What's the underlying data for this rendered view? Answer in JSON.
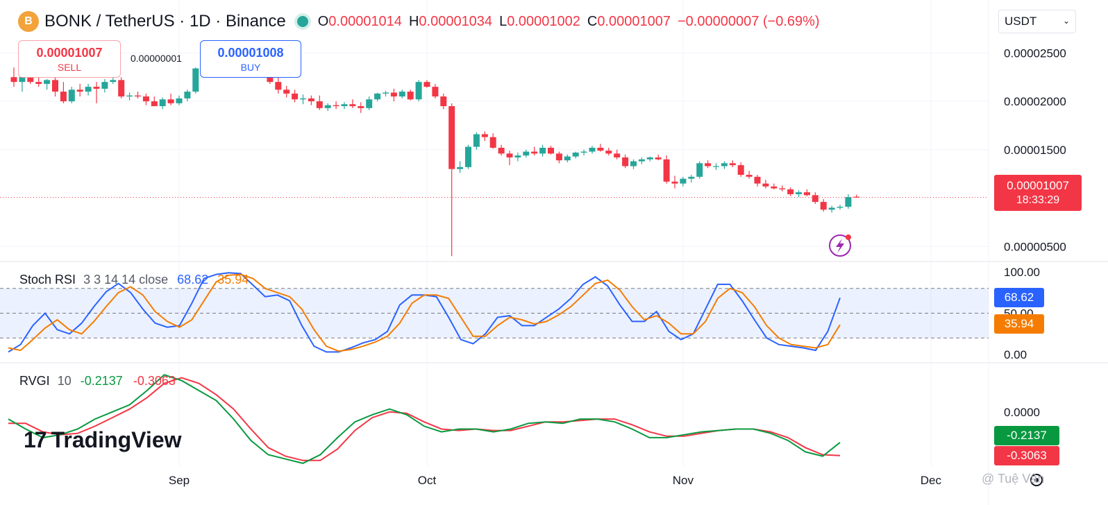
{
  "header": {
    "logo_icon": "bonk-coin-icon",
    "title": "BONK / TetherUS · 1D · Binance",
    "ohlc": {
      "o_label": "O",
      "o": "0.00001014",
      "h_label": "H",
      "h": "0.00001034",
      "l_label": "L",
      "l": "0.00001002",
      "c_label": "C",
      "c": "0.00001007"
    },
    "change": "−0.00000007 (−0.69%)"
  },
  "currency_select": "USDT",
  "trade": {
    "sell_price": "0.00001007",
    "sell_label": "SELL",
    "buy_price": "0.00001008",
    "buy_label": "BUY",
    "spread": "0.00000001"
  },
  "price_tag": {
    "price": "0.00001007",
    "countdown": "18:33:29"
  },
  "colors": {
    "up": "#26a69a",
    "down": "#f23645",
    "stoch_k": "#2962ff",
    "stoch_d": "#f57c00",
    "rvgi": "#089940",
    "rvgi_signal": "#f23645"
  },
  "stoch": {
    "name": "Stoch RSI",
    "params": "3 3 14 14 close",
    "k": "68.62",
    "d": "35.94"
  },
  "rvgi": {
    "name": "RVGI",
    "params": "10",
    "rvgi": "-0.2137",
    "signal": "-0.3063"
  },
  "watermark": "TradingView",
  "credit": "@ Tuệ Vân",
  "chart_data": [
    {
      "type": "candlestick",
      "title": "BONK / TetherUS · 1D · Binance",
      "y_ticks": [
        "0.00002500",
        "0.00002000",
        "0.00001500",
        "0.00000500"
      ],
      "ylim": [
        3.8e-06,
        2.66e-05
      ],
      "x_ticks": [
        {
          "label": "Sep",
          "i": 20
        },
        {
          "label": "Oct",
          "i": 50
        },
        {
          "label": "Nov",
          "i": 81
        },
        {
          "label": "Dec",
          "i": 111
        }
      ],
      "current_price": 1.007e-05,
      "candles": [
        [
          22.5,
          23.5,
          21.5,
          22.0
        ],
        [
          22.0,
          23.0,
          21.0,
          22.5
        ],
        [
          22.5,
          23.0,
          21.8,
          22.0
        ],
        [
          22.0,
          22.8,
          21.5,
          21.8
        ],
        [
          21.8,
          22.3,
          21.2,
          22.2
        ],
        [
          22.2,
          23.0,
          20.5,
          21.0
        ],
        [
          21.0,
          22.0,
          19.8,
          20.0
        ],
        [
          20.0,
          21.5,
          19.8,
          21.2
        ],
        [
          21.2,
          21.8,
          20.5,
          21.0
        ],
        [
          21.0,
          21.8,
          20.6,
          21.5
        ],
        [
          21.5,
          22.0,
          19.8,
          21.3
        ],
        [
          21.3,
          22.3,
          20.9,
          22.0
        ],
        [
          22.0,
          22.6,
          21.8,
          22.2
        ],
        [
          22.2,
          22.5,
          20.3,
          20.5
        ],
        [
          20.5,
          20.9,
          20.1,
          20.6
        ],
        [
          20.6,
          21.0,
          20.3,
          20.5
        ],
        [
          20.5,
          20.8,
          19.6,
          20.0
        ],
        [
          20.0,
          20.5,
          19.5,
          19.5
        ],
        [
          19.5,
          20.4,
          19.2,
          20.2
        ],
        [
          20.2,
          20.8,
          19.6,
          19.8
        ],
        [
          19.8,
          20.6,
          19.6,
          20.3
        ],
        [
          20.3,
          21.2,
          20.0,
          21.0
        ],
        [
          21.0,
          23.5,
          20.8,
          23.4
        ],
        [
          23.4,
          24.2,
          23.0,
          23.2
        ],
        [
          23.2,
          23.8,
          22.8,
          23.6
        ],
        [
          23.6,
          24.8,
          23.3,
          24.5
        ],
        [
          24.5,
          25.0,
          24.0,
          24.2
        ],
        [
          24.2,
          24.8,
          23.6,
          23.8
        ],
        [
          23.8,
          24.0,
          23.0,
          23.2
        ],
        [
          23.2,
          23.8,
          22.8,
          23.5
        ],
        [
          23.5,
          23.9,
          22.6,
          22.8
        ],
        [
          22.8,
          23.2,
          21.8,
          22.0
        ],
        [
          22.0,
          22.5,
          20.8,
          21.2
        ],
        [
          21.2,
          21.6,
          20.4,
          20.8
        ],
        [
          20.8,
          21.2,
          19.9,
          20.2
        ],
        [
          20.2,
          20.7,
          19.7,
          20.3
        ],
        [
          20.3,
          20.6,
          19.6,
          20.0
        ],
        [
          20.0,
          20.6,
          19.1,
          19.3
        ],
        [
          19.3,
          19.8,
          19.0,
          19.6
        ],
        [
          19.6,
          20.0,
          19.2,
          19.5
        ],
        [
          19.5,
          19.9,
          19.2,
          19.7
        ],
        [
          19.7,
          20.2,
          19.3,
          19.5
        ],
        [
          19.5,
          19.9,
          18.8,
          19.3
        ],
        [
          19.3,
          20.5,
          19.1,
          20.2
        ],
        [
          20.2,
          20.9,
          20.0,
          20.8
        ],
        [
          20.8,
          21.1,
          20.5,
          20.9
        ],
        [
          20.9,
          21.3,
          20.0,
          20.5
        ],
        [
          20.5,
          21.2,
          20.3,
          21.0
        ],
        [
          21.0,
          21.2,
          20.1,
          20.2
        ],
        [
          20.2,
          22.2,
          20.0,
          22.0
        ],
        [
          22.0,
          22.2,
          21.4,
          21.5
        ],
        [
          21.5,
          21.8,
          20.3,
          20.5
        ],
        [
          20.5,
          20.8,
          19.2,
          19.5
        ],
        [
          19.5,
          19.8,
          4.0,
          13.0
        ],
        [
          13.0,
          13.8,
          12.6,
          13.2
        ],
        [
          13.2,
          15.5,
          13.0,
          15.3
        ],
        [
          15.3,
          16.8,
          15.0,
          16.6
        ],
        [
          16.6,
          16.9,
          15.9,
          16.3
        ],
        [
          16.3,
          16.7,
          15.1,
          15.2
        ],
        [
          15.2,
          15.5,
          14.4,
          14.6
        ],
        [
          14.6,
          14.9,
          13.4,
          14.2
        ],
        [
          14.2,
          14.7,
          13.8,
          14.4
        ],
        [
          14.4,
          15.0,
          14.2,
          14.8
        ],
        [
          14.8,
          15.3,
          14.4,
          14.6
        ],
        [
          14.6,
          15.5,
          14.3,
          15.2
        ],
        [
          15.2,
          15.4,
          14.5,
          14.6
        ],
        [
          14.6,
          14.8,
          13.6,
          13.9
        ],
        [
          13.9,
          14.5,
          13.7,
          14.3
        ],
        [
          14.3,
          14.8,
          14.1,
          14.7
        ],
        [
          14.7,
          15.0,
          14.4,
          14.8
        ],
        [
          14.8,
          15.4,
          14.6,
          15.2
        ],
        [
          15.2,
          15.6,
          14.8,
          14.9
        ],
        [
          14.9,
          15.2,
          14.4,
          14.6
        ],
        [
          14.6,
          15.0,
          14.0,
          14.2
        ],
        [
          14.2,
          14.5,
          13.1,
          13.3
        ],
        [
          13.3,
          14.0,
          13.0,
          13.8
        ],
        [
          13.8,
          14.2,
          13.5,
          14.0
        ],
        [
          14.0,
          14.3,
          13.8,
          14.2
        ],
        [
          14.2,
          14.5,
          13.9,
          14.0
        ],
        [
          14.0,
          14.4,
          11.5,
          11.7
        ],
        [
          11.7,
          12.3,
          11.0,
          11.5
        ],
        [
          11.5,
          12.2,
          11.2,
          12.0
        ],
        [
          12.0,
          12.4,
          11.6,
          12.2
        ],
        [
          12.2,
          13.8,
          12.0,
          13.6
        ],
        [
          13.6,
          13.9,
          13.1,
          13.3
        ],
        [
          13.3,
          13.6,
          12.9,
          13.3
        ],
        [
          13.3,
          13.8,
          13.0,
          13.6
        ],
        [
          13.6,
          13.9,
          13.2,
          13.4
        ],
        [
          13.4,
          13.7,
          12.2,
          12.4
        ],
        [
          12.4,
          12.8,
          12.0,
          12.2
        ],
        [
          12.2,
          12.4,
          11.2,
          11.5
        ],
        [
          11.5,
          11.9,
          11.0,
          11.2
        ],
        [
          11.2,
          11.5,
          10.9,
          11.0
        ],
        [
          11.0,
          11.3,
          10.7,
          10.9
        ],
        [
          10.9,
          11.1,
          10.2,
          10.4
        ],
        [
          10.4,
          10.8,
          10.1,
          10.6
        ],
        [
          10.6,
          10.9,
          10.2,
          10.3
        ],
        [
          10.3,
          10.6,
          9.4,
          9.6
        ],
        [
          9.6,
          9.9,
          8.6,
          8.8
        ],
        [
          8.8,
          9.2,
          8.5,
          9.0
        ],
        [
          9.0,
          9.3,
          8.8,
          9.1
        ],
        [
          9.1,
          10.4,
          8.9,
          10.1
        ],
        [
          10.14,
          10.34,
          10.02,
          10.07
        ]
      ]
    },
    {
      "type": "line",
      "name": "Stoch RSI 3 3 14 14 close",
      "y_ticks": [
        100,
        50,
        0
      ],
      "ylim": [
        0,
        100
      ],
      "bands": [
        20,
        50,
        80
      ],
      "series": [
        {
          "name": "68.62",
          "color": "#2962ff",
          "values": [
            3,
            12,
            35,
            50,
            30,
            25,
            38,
            58,
            76,
            86,
            75,
            55,
            38,
            33,
            35,
            62,
            92,
            97,
            99,
            98,
            84,
            70,
            72,
            65,
            35,
            10,
            3,
            3,
            8,
            14,
            18,
            28,
            60,
            72,
            72,
            70,
            45,
            18,
            13,
            25,
            45,
            47,
            35,
            35,
            45,
            55,
            68,
            85,
            94,
            83,
            60,
            40,
            40,
            52,
            28,
            18,
            25,
            55,
            85,
            85,
            65,
            42,
            20,
            12,
            10,
            8,
            5,
            28,
            68.62
          ]
        },
        {
          "name": "35.94",
          "color": "#f57c00",
          "values": [
            8,
            5,
            18,
            32,
            42,
            30,
            25,
            40,
            58,
            75,
            82,
            72,
            52,
            40,
            33,
            42,
            65,
            88,
            96,
            97,
            92,
            80,
            75,
            70,
            55,
            30,
            10,
            4,
            6,
            10,
            15,
            22,
            38,
            62,
            72,
            72,
            68,
            45,
            22,
            22,
            35,
            45,
            42,
            37,
            40,
            48,
            58,
            72,
            86,
            90,
            78,
            58,
            42,
            47,
            38,
            25,
            25,
            40,
            68,
            80,
            75,
            58,
            35,
            20,
            12,
            10,
            8,
            12,
            35.94
          ]
        }
      ]
    },
    {
      "type": "line",
      "name": "RVGI 10",
      "y_ticks": [
        "0.0000"
      ],
      "ylim": [
        -0.38,
        0.32
      ],
      "series": [
        {
          "name": "-0.2137",
          "color": "#089940",
          "values": [
            -0.05,
            -0.12,
            -0.18,
            -0.16,
            -0.12,
            -0.05,
            0.0,
            0.05,
            0.15,
            0.26,
            0.22,
            0.15,
            0.08,
            -0.05,
            -0.2,
            -0.3,
            -0.33,
            -0.36,
            -0.3,
            -0.18,
            -0.07,
            -0.02,
            0.02,
            -0.02,
            -0.1,
            -0.14,
            -0.12,
            -0.12,
            -0.14,
            -0.12,
            -0.08,
            -0.07,
            -0.08,
            -0.05,
            -0.05,
            -0.07,
            -0.12,
            -0.18,
            -0.18,
            -0.16,
            -0.14,
            -0.13,
            -0.12,
            -0.12,
            -0.15,
            -0.2,
            -0.28,
            -0.31,
            -0.2137
          ]
        },
        {
          "name": "-0.3063",
          "color": "#f23645",
          "values": [
            -0.08,
            -0.08,
            -0.14,
            -0.16,
            -0.15,
            -0.1,
            -0.04,
            0.02,
            0.1,
            0.2,
            0.24,
            0.2,
            0.12,
            0.02,
            -0.12,
            -0.25,
            -0.31,
            -0.34,
            -0.34,
            -0.26,
            -0.13,
            -0.04,
            0.0,
            -0.01,
            -0.07,
            -0.12,
            -0.13,
            -0.12,
            -0.13,
            -0.13,
            -0.1,
            -0.07,
            -0.07,
            -0.06,
            -0.05,
            -0.05,
            -0.09,
            -0.14,
            -0.17,
            -0.17,
            -0.15,
            -0.13,
            -0.12,
            -0.12,
            -0.14,
            -0.18,
            -0.25,
            -0.3,
            -0.3063
          ]
        }
      ]
    }
  ]
}
